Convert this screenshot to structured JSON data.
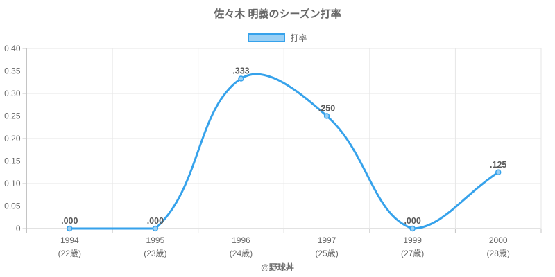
{
  "title": "佐々木 明義のシーズン打率",
  "legend": {
    "label": "打率",
    "box_fill": "#9AD0F5",
    "box_border": "#36A2EB"
  },
  "footer": "@野球丼",
  "chart_data": {
    "type": "line",
    "title": "佐々木 明義のシーズン打率",
    "categories": [
      "1994",
      "1995",
      "1996",
      "1997",
      "1999",
      "2000"
    ],
    "category_sublabels": [
      "(22歳)",
      "(23歳)",
      "(24歳)",
      "(25歳)",
      "(27歳)",
      "(28歳)"
    ],
    "series": [
      {
        "name": "打率",
        "values": [
          0.0,
          0.0,
          0.333,
          0.25,
          0.0,
          0.125
        ],
        "point_labels": [
          ".000",
          ".000",
          ".333",
          ".250",
          ".000",
          ".125"
        ],
        "line_color": "#36A2EB",
        "point_fill": "#9AD0F5"
      }
    ],
    "ylim": [
      0,
      0.4
    ],
    "ytick_step": 0.05,
    "ytick_labels": [
      "0",
      "0.05",
      "0.10",
      "0.15",
      "0.20",
      "0.25",
      "0.30",
      "0.35",
      "0.40"
    ],
    "grid": true,
    "legend_position": "top",
    "curve": "smooth",
    "xlabel": "",
    "ylabel": ""
  },
  "colors": {
    "axis_text": "#666666",
    "grid_line": "#e6e6e6",
    "axis_line": "#c4c4c4",
    "data_label_text": "#595959"
  }
}
